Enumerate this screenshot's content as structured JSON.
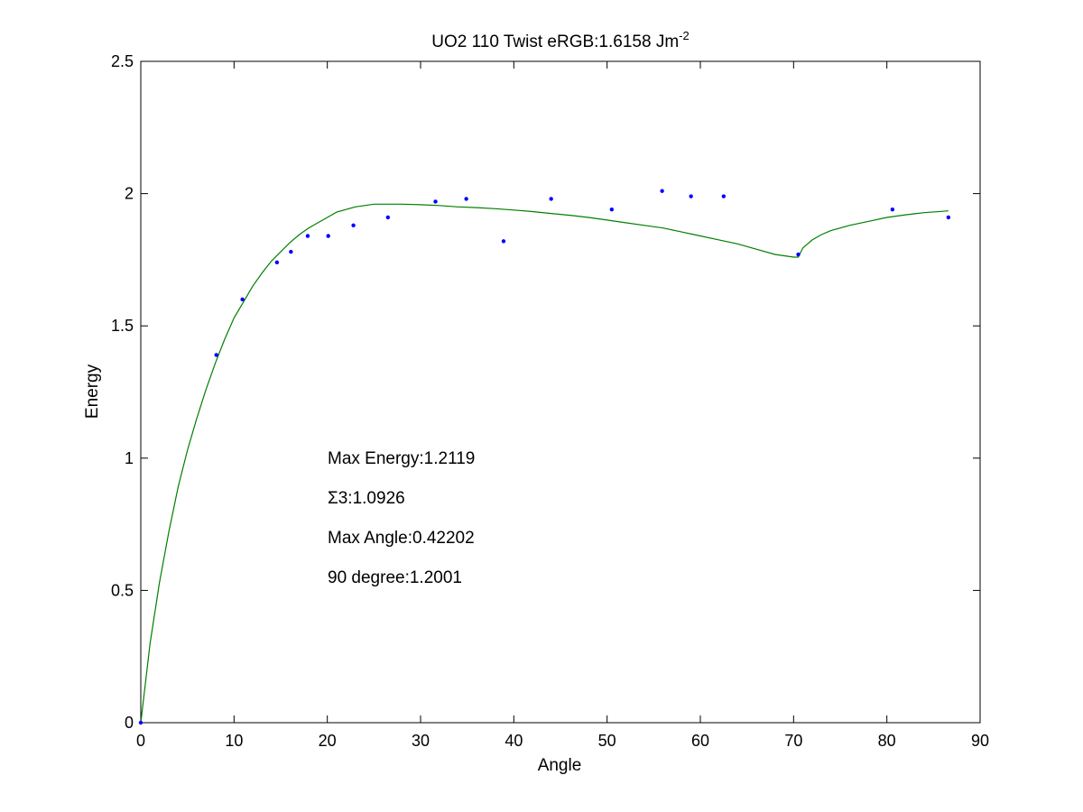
{
  "chart_data": {
    "type": "scatter",
    "title": "UO2 110 Twist   eRGB:1.6158 Jm",
    "title_superscript": "-2",
    "xlabel": "Angle",
    "ylabel": "Energy",
    "xlim": [
      0,
      90
    ],
    "ylim": [
      0,
      2.5
    ],
    "xticks": [
      "0",
      "10",
      "20",
      "30",
      "40",
      "50",
      "60",
      "70",
      "80",
      "90"
    ],
    "yticks": [
      "0",
      "0.5",
      "1",
      "1.5",
      "2",
      "2.5"
    ],
    "grid": false,
    "legend": "none",
    "colors": {
      "points": "#0000ff",
      "curve": "#007f00",
      "axes": "#000000",
      "background": "#ffffff"
    },
    "series": [
      {
        "kind": "points",
        "x": [
          0,
          8.1,
          10.9,
          14.6,
          16.1,
          17.9,
          20.1,
          22.8,
          26.5,
          31.6,
          34.9,
          38.9,
          44.0,
          50.5,
          55.9,
          59.0,
          62.5,
          70.5,
          80.6,
          86.6
        ],
        "y": [
          0,
          1.39,
          1.6,
          1.74,
          1.78,
          1.84,
          1.84,
          1.88,
          1.91,
          1.97,
          1.98,
          1.82,
          1.98,
          1.94,
          2.01,
          1.99,
          1.99,
          1.77,
          1.94,
          1.91
        ]
      },
      {
        "kind": "curve",
        "x": [
          0,
          1,
          2,
          3,
          4,
          5,
          6,
          7,
          8,
          9,
          10,
          11,
          12,
          13,
          14,
          15,
          16,
          17,
          18,
          19,
          20,
          21,
          22,
          23,
          24,
          25,
          26,
          28,
          30,
          32,
          34,
          36,
          38,
          40,
          42,
          44,
          46,
          48,
          50,
          52,
          54,
          56,
          58,
          60,
          62,
          64,
          66,
          68,
          70,
          70.5,
          71,
          72,
          73,
          74,
          76,
          78,
          80,
          82,
          84,
          86,
          86.6
        ],
        "y": [
          0,
          0.3,
          0.53,
          0.72,
          0.89,
          1.03,
          1.15,
          1.26,
          1.36,
          1.45,
          1.53,
          1.59,
          1.65,
          1.7,
          1.745,
          1.78,
          1.815,
          1.845,
          1.87,
          1.89,
          1.91,
          1.93,
          1.94,
          1.95,
          1.955,
          1.96,
          1.96,
          1.96,
          1.958,
          1.955,
          1.95,
          1.947,
          1.943,
          1.938,
          1.932,
          1.925,
          1.918,
          1.91,
          1.9,
          1.89,
          1.88,
          1.87,
          1.855,
          1.84,
          1.825,
          1.81,
          1.79,
          1.77,
          1.76,
          1.76,
          1.795,
          1.825,
          1.845,
          1.86,
          1.88,
          1.895,
          1.91,
          1.92,
          1.928,
          1.933,
          1.935
        ]
      }
    ],
    "annotations": [
      "Max Energy:1.2119",
      "Σ3:1.0926",
      "Max Angle:0.42202",
      "90 degree:1.2001"
    ]
  }
}
